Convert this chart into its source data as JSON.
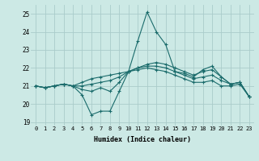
{
  "xlabel": "Humidex (Indice chaleur)",
  "background_color": "#cce9e5",
  "grid_color": "#aaccca",
  "line_color": "#1a6b6b",
  "xlim": [
    -0.5,
    23.5
  ],
  "ylim": [
    18.8,
    25.5
  ],
  "yticks": [
    19,
    20,
    21,
    22,
    23,
    24,
    25
  ],
  "xticks": [
    0,
    1,
    2,
    3,
    4,
    5,
    6,
    7,
    8,
    9,
    10,
    11,
    12,
    13,
    14,
    15,
    16,
    17,
    18,
    19,
    20,
    21,
    22,
    23
  ],
  "series": [
    [
      21.0,
      20.9,
      21.0,
      21.1,
      21.0,
      20.5,
      19.4,
      19.6,
      19.6,
      20.7,
      21.8,
      23.5,
      25.1,
      24.0,
      23.3,
      21.8,
      21.7,
      21.5,
      21.9,
      22.1,
      21.5,
      21.1,
      21.2,
      20.4
    ],
    [
      21.0,
      20.9,
      21.0,
      21.1,
      21.0,
      20.8,
      20.7,
      20.9,
      20.7,
      21.2,
      21.8,
      22.0,
      22.2,
      22.3,
      22.2,
      22.0,
      21.8,
      21.6,
      21.8,
      21.9,
      21.5,
      21.1,
      21.2,
      20.4
    ],
    [
      21.0,
      20.9,
      21.0,
      21.1,
      21.0,
      21.0,
      21.1,
      21.2,
      21.3,
      21.5,
      21.8,
      22.0,
      22.1,
      22.1,
      22.0,
      21.8,
      21.6,
      21.4,
      21.5,
      21.6,
      21.3,
      21.1,
      21.2,
      20.4
    ],
    [
      21.0,
      20.9,
      21.0,
      21.1,
      21.0,
      21.2,
      21.4,
      21.5,
      21.6,
      21.7,
      21.8,
      21.9,
      22.0,
      21.9,
      21.8,
      21.6,
      21.4,
      21.2,
      21.2,
      21.3,
      21.0,
      21.0,
      21.1,
      20.4
    ]
  ]
}
